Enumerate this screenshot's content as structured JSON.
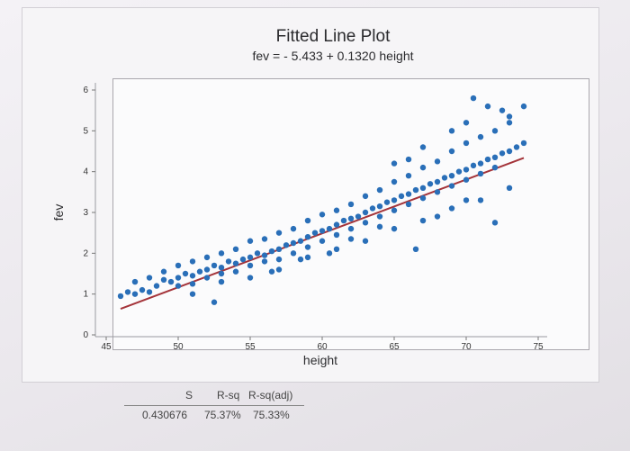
{
  "colors": {
    "points": "#2a6fb8",
    "fit_line": "#a4343a",
    "background": "#f6f5f7"
  },
  "chart_data": {
    "type": "scatter",
    "title": "Fitted Line Plot",
    "subtitle": "fev = - 5.433 + 0.1320 height",
    "xlabel": "height",
    "ylabel": "fev",
    "xlim": [
      45,
      75
    ],
    "ylim": [
      0,
      6
    ],
    "xticks": [
      45,
      50,
      55,
      60,
      65,
      70,
      75
    ],
    "yticks": [
      0,
      1,
      2,
      3,
      4,
      5,
      6
    ],
    "grid": false,
    "fit_line": {
      "intercept": -5.433,
      "slope": 0.132,
      "x_range": [
        46,
        74
      ]
    },
    "points": [
      [
        46.0,
        0.95
      ],
      [
        46.5,
        1.05
      ],
      [
        47.0,
        1.0
      ],
      [
        47.5,
        1.1
      ],
      [
        48.0,
        1.05
      ],
      [
        48.5,
        1.2
      ],
      [
        49.0,
        1.35
      ],
      [
        49.5,
        1.3
      ],
      [
        50.0,
        1.4
      ],
      [
        50.0,
        1.2
      ],
      [
        50.5,
        1.5
      ],
      [
        51.0,
        1.45
      ],
      [
        51.0,
        1.25
      ],
      [
        51.5,
        1.55
      ],
      [
        52.0,
        1.6
      ],
      [
        52.0,
        1.4
      ],
      [
        52.5,
        1.7
      ],
      [
        53.0,
        1.65
      ],
      [
        53.0,
        1.5
      ],
      [
        53.5,
        1.8
      ],
      [
        54.0,
        1.75
      ],
      [
        54.0,
        1.55
      ],
      [
        54.5,
        1.85
      ],
      [
        55.0,
        1.9
      ],
      [
        55.0,
        1.7
      ],
      [
        55.5,
        2.0
      ],
      [
        56.0,
        1.95
      ],
      [
        56.0,
        1.8
      ],
      [
        56.5,
        2.05
      ],
      [
        57.0,
        2.1
      ],
      [
        57.0,
        1.85
      ],
      [
        57.5,
        2.2
      ],
      [
        58.0,
        2.25
      ],
      [
        58.0,
        2.0
      ],
      [
        58.5,
        2.3
      ],
      [
        59.0,
        2.4
      ],
      [
        59.0,
        2.15
      ],
      [
        59.5,
        2.5
      ],
      [
        60.0,
        2.55
      ],
      [
        60.0,
        2.3
      ],
      [
        60.5,
        2.6
      ],
      [
        61.0,
        2.7
      ],
      [
        61.0,
        2.45
      ],
      [
        61.5,
        2.8
      ],
      [
        62.0,
        2.85
      ],
      [
        62.0,
        2.6
      ],
      [
        62.5,
        2.9
      ],
      [
        63.0,
        3.0
      ],
      [
        63.0,
        2.75
      ],
      [
        63.5,
        3.1
      ],
      [
        64.0,
        3.15
      ],
      [
        64.0,
        2.9
      ],
      [
        64.5,
        3.25
      ],
      [
        65.0,
        3.3
      ],
      [
        65.0,
        3.05
      ],
      [
        65.5,
        3.4
      ],
      [
        66.0,
        3.45
      ],
      [
        66.0,
        3.2
      ],
      [
        66.5,
        3.55
      ],
      [
        67.0,
        3.6
      ],
      [
        67.0,
        3.35
      ],
      [
        67.5,
        3.7
      ],
      [
        68.0,
        3.75
      ],
      [
        68.0,
        3.5
      ],
      [
        68.5,
        3.85
      ],
      [
        69.0,
        3.9
      ],
      [
        69.0,
        3.65
      ],
      [
        69.5,
        4.0
      ],
      [
        70.0,
        4.05
      ],
      [
        70.0,
        3.8
      ],
      [
        70.5,
        4.15
      ],
      [
        71.0,
        4.2
      ],
      [
        71.0,
        3.95
      ],
      [
        71.5,
        4.3
      ],
      [
        72.0,
        4.35
      ],
      [
        72.0,
        4.1
      ],
      [
        72.5,
        4.45
      ],
      [
        73.0,
        4.5
      ],
      [
        73.5,
        4.6
      ],
      [
        74.0,
        4.7
      ],
      [
        47.0,
        1.3
      ],
      [
        48.0,
        1.4
      ],
      [
        49.0,
        1.55
      ],
      [
        50.0,
        1.7
      ],
      [
        51.0,
        1.8
      ],
      [
        52.0,
        1.9
      ],
      [
        53.0,
        2.0
      ],
      [
        54.0,
        2.1
      ],
      [
        55.0,
        2.3
      ],
      [
        56.0,
        2.35
      ],
      [
        57.0,
        2.5
      ],
      [
        58.0,
        2.6
      ],
      [
        59.0,
        2.8
      ],
      [
        60.0,
        2.95
      ],
      [
        61.0,
        3.05
      ],
      [
        62.0,
        3.2
      ],
      [
        63.0,
        3.4
      ],
      [
        64.0,
        3.55
      ],
      [
        65.0,
        3.75
      ],
      [
        66.0,
        3.9
      ],
      [
        67.0,
        4.1
      ],
      [
        68.0,
        4.25
      ],
      [
        69.0,
        4.5
      ],
      [
        70.0,
        4.7
      ],
      [
        71.0,
        4.85
      ],
      [
        72.0,
        5.0
      ],
      [
        73.0,
        5.2
      ],
      [
        67.0,
        4.6
      ],
      [
        66.0,
        4.3
      ],
      [
        65.0,
        4.2
      ],
      [
        69.0,
        5.0
      ],
      [
        70.0,
        5.2
      ],
      [
        51.0,
        1.0
      ],
      [
        53.0,
        1.3
      ],
      [
        55.0,
        1.4
      ],
      [
        57.0,
        1.6
      ],
      [
        59.0,
        1.9
      ],
      [
        61.0,
        2.1
      ],
      [
        63.0,
        2.3
      ],
      [
        65.0,
        2.6
      ],
      [
        67.0,
        2.8
      ],
      [
        69.0,
        3.1
      ],
      [
        71.0,
        3.3
      ],
      [
        73.0,
        3.6
      ],
      [
        52.5,
        0.8
      ],
      [
        66.5,
        2.1
      ],
      [
        72.0,
        2.75
      ],
      [
        71.5,
        5.6
      ],
      [
        72.5,
        5.5
      ],
      [
        70.5,
        5.8
      ],
      [
        74.0,
        5.6
      ],
      [
        73.0,
        5.35
      ],
      [
        70.0,
        3.3
      ],
      [
        68.0,
        2.9
      ],
      [
        64.0,
        2.65
      ],
      [
        62.0,
        2.35
      ],
      [
        60.5,
        2.0
      ],
      [
        58.5,
        1.85
      ],
      [
        56.5,
        1.55
      ]
    ]
  },
  "stats": {
    "headers": [
      "S",
      "R-sq",
      "R-sq(adj)"
    ],
    "values": [
      "0.430676",
      "75.37%",
      "75.33%"
    ]
  }
}
